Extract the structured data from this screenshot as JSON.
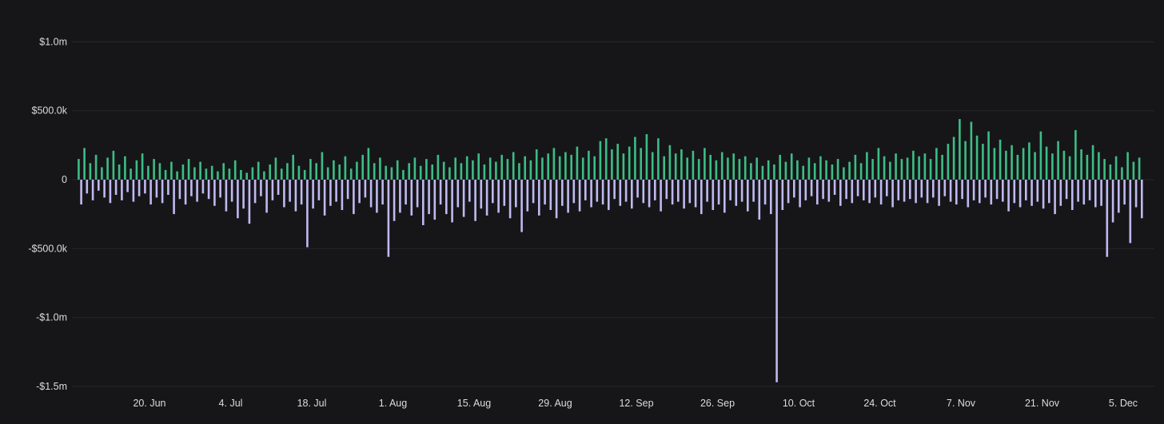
{
  "page": {
    "background": "#161619",
    "text_color": "#dcdcdc",
    "grid_color": "rgba(255,255,255,0.07)"
  },
  "chart_data": {
    "type": "bar",
    "title": "",
    "xlabel": "",
    "ylabel": "",
    "unit": "thousand USD",
    "n_points": 184,
    "ylim": [
      -1550,
      1250
    ],
    "legend": "none",
    "grid": "horizontal-faint",
    "y_ticks": [
      {
        "value": 1000,
        "label": "$1.0m"
      },
      {
        "value": 500,
        "label": "$500.0k"
      },
      {
        "value": 0,
        "label": "0"
      },
      {
        "value": -500,
        "label": "-$500.0k"
      },
      {
        "value": -1000,
        "label": "-$1.0m"
      },
      {
        "value": -1500,
        "label": "-$1.5m"
      }
    ],
    "x_ticks": [
      {
        "index": 12,
        "label": "20. Jun"
      },
      {
        "index": 26,
        "label": "4. Jul"
      },
      {
        "index": 40,
        "label": "18. Jul"
      },
      {
        "index": 54,
        "label": "1. Aug"
      },
      {
        "index": 68,
        "label": "15. Aug"
      },
      {
        "index": 82,
        "label": "29. Aug"
      },
      {
        "index": 96,
        "label": "12. Sep"
      },
      {
        "index": 110,
        "label": "26. Sep"
      },
      {
        "index": 124,
        "label": "10. Oct"
      },
      {
        "index": 138,
        "label": "24. Oct"
      },
      {
        "index": 152,
        "label": "7. Nov"
      },
      {
        "index": 166,
        "label": "21. Nov"
      },
      {
        "index": 180,
        "label": "5. Dec"
      }
    ],
    "series": [
      {
        "name": "positive-flow",
        "color": "#3dbd85",
        "values": [
          150,
          230,
          120,
          180,
          90,
          160,
          210,
          110,
          170,
          80,
          140,
          190,
          100,
          150,
          120,
          70,
          130,
          60,
          110,
          150,
          90,
          130,
          80,
          100,
          60,
          120,
          80,
          140,
          70,
          50,
          90,
          130,
          60,
          110,
          160,
          80,
          120,
          180,
          100,
          70,
          150,
          120,
          200,
          90,
          140,
          110,
          170,
          80,
          130,
          180,
          230,
          120,
          160,
          100,
          90,
          140,
          70,
          120,
          160,
          100,
          150,
          110,
          180,
          130,
          90,
          160,
          120,
          170,
          140,
          190,
          110,
          160,
          130,
          180,
          150,
          200,
          120,
          170,
          140,
          220,
          160,
          190,
          230,
          170,
          200,
          180,
          240,
          160,
          210,
          170,
          280,
          300,
          220,
          260,
          190,
          240,
          310,
          230,
          330,
          200,
          300,
          170,
          250,
          190,
          220,
          160,
          210,
          150,
          230,
          180,
          140,
          200,
          160,
          190,
          150,
          170,
          120,
          160,
          100,
          140,
          110,
          180,
          130,
          190,
          140,
          100,
          160,
          120,
          170,
          140,
          110,
          150,
          90,
          130,
          180,
          120,
          200,
          150,
          230,
          170,
          130,
          190,
          150,
          160,
          210,
          170,
          190,
          150,
          230,
          180,
          260,
          310,
          440,
          280,
          420,
          320,
          260,
          350,
          230,
          290,
          210,
          250,
          180,
          230,
          270,
          200,
          350,
          240,
          190,
          280,
          210,
          170,
          360,
          220,
          180,
          250,
          200,
          150,
          110,
          170,
          90,
          200,
          130,
          160
        ]
      },
      {
        "name": "negative-flow",
        "color": "#c0b9f1",
        "values": [
          -180,
          -100,
          -150,
          -80,
          -130,
          -170,
          -110,
          -150,
          -90,
          -160,
          -120,
          -100,
          -180,
          -130,
          -170,
          -110,
          -250,
          -140,
          -180,
          -120,
          -160,
          -100,
          -140,
          -190,
          -130,
          -230,
          -160,
          -280,
          -210,
          -320,
          -170,
          -120,
          -240,
          -150,
          -110,
          -200,
          -160,
          -230,
          -180,
          -490,
          -210,
          -150,
          -260,
          -190,
          -160,
          -220,
          -140,
          -250,
          -170,
          -130,
          -200,
          -240,
          -180,
          -560,
          -300,
          -240,
          -180,
          -260,
          -200,
          -330,
          -250,
          -290,
          -180,
          -250,
          -310,
          -200,
          -270,
          -160,
          -300,
          -210,
          -260,
          -170,
          -240,
          -190,
          -280,
          -200,
          -380,
          -230,
          -170,
          -260,
          -180,
          -220,
          -280,
          -190,
          -240,
          -170,
          -230,
          -150,
          -200,
          -160,
          -180,
          -220,
          -140,
          -190,
          -160,
          -210,
          -130,
          -170,
          -200,
          -150,
          -230,
          -140,
          -180,
          -160,
          -210,
          -170,
          -200,
          -250,
          -160,
          -220,
          -180,
          -240,
          -150,
          -190,
          -160,
          -230,
          -160,
          -290,
          -180,
          -250,
          -1470,
          -220,
          -170,
          -130,
          -200,
          -150,
          -120,
          -180,
          -140,
          -160,
          -110,
          -190,
          -140,
          -170,
          -120,
          -150,
          -170,
          -130,
          -180,
          -120,
          -200,
          -150,
          -160,
          -140,
          -170,
          -130,
          -170,
          -130,
          -190,
          -120,
          -160,
          -180,
          -140,
          -200,
          -150,
          -170,
          -130,
          -180,
          -140,
          -160,
          -230,
          -170,
          -200,
          -150,
          -190,
          -160,
          -210,
          -170,
          -250,
          -190,
          -140,
          -220,
          -160,
          -180,
          -150,
          -200,
          -190,
          -560,
          -310,
          -240,
          -180,
          -460,
          -200,
          -280
        ]
      }
    ]
  }
}
